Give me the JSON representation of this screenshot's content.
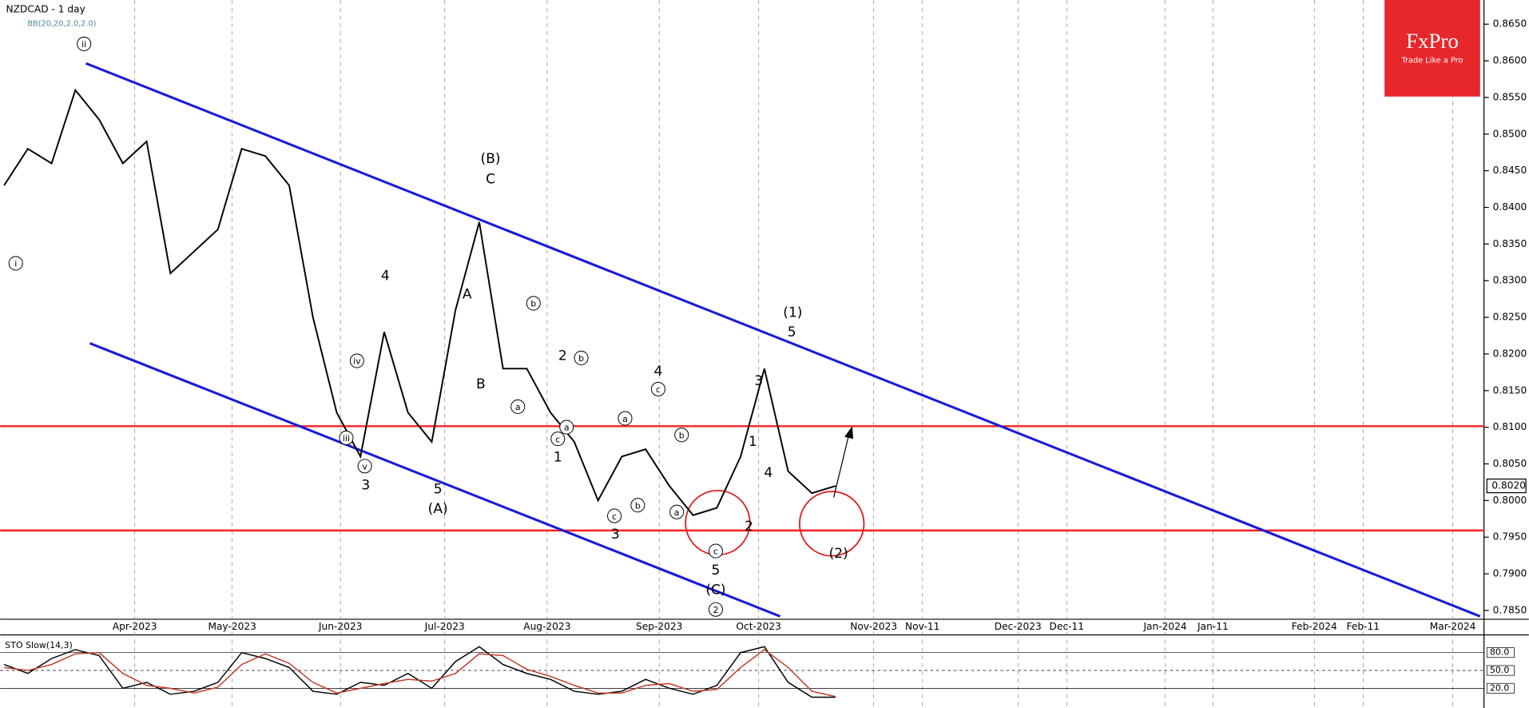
{
  "brand": {
    "name": "FxPro",
    "tagline": "Trade Like a Pro"
  },
  "chart_data": [
    {
      "type": "line",
      "title": "NZDCAD - 1 day",
      "subtitle": "BB(20,20,2.0,2.0)",
      "categories": [
        null,
        null,
        null,
        null,
        null,
        null,
        null,
        null,
        null,
        null,
        null,
        null,
        null,
        null,
        null,
        null,
        null,
        null,
        null,
        null,
        null,
        null,
        null,
        null,
        null,
        null,
        null,
        null,
        null,
        null,
        null,
        null,
        null,
        null,
        null,
        null
      ],
      "values": [
        0.843,
        0.848,
        0.846,
        0.856,
        0.852,
        0.846,
        0.849,
        0.831,
        0.834,
        0.837,
        0.848,
        0.847,
        0.843,
        0.825,
        0.812,
        0.806,
        0.823,
        0.812,
        0.808,
        0.826,
        0.838,
        0.818,
        0.818,
        0.812,
        0.808,
        0.8,
        0.806,
        0.807,
        0.802,
        0.798,
        0.799,
        0.806,
        0.818,
        0.804,
        0.801,
        0.802
      ],
      "color": "#000000",
      "ylim": [
        0.7838,
        0.8683
      ],
      "yticks": [
        {
          "value": 0.865,
          "label": "0.8650"
        },
        {
          "value": 0.86,
          "label": "0.8600"
        },
        {
          "value": 0.855,
          "label": "0.8550"
        },
        {
          "value": 0.85,
          "label": "0.8500"
        },
        {
          "value": 0.845,
          "label": "0.8450"
        },
        {
          "value": 0.84,
          "label": "0.8400"
        },
        {
          "value": 0.835,
          "label": "0.8350"
        },
        {
          "value": 0.83,
          "label": "0.8300"
        },
        {
          "value": 0.825,
          "label": "0.8250"
        },
        {
          "value": 0.82,
          "label": "0.8200"
        },
        {
          "value": 0.815,
          "label": "0.8150"
        },
        {
          "value": 0.81,
          "label": "0.8100"
        },
        {
          "value": 0.805,
          "label": "0.8050"
        },
        {
          "value": 0.8,
          "label": "0.8000"
        },
        {
          "value": 0.795,
          "label": "0.7950"
        },
        {
          "value": 0.79,
          "label": "0.7900"
        },
        {
          "value": 0.785,
          "label": "0.7850"
        }
      ],
      "last_price": {
        "value": 0.802,
        "label": "0.8020"
      },
      "x_labels": [
        "Apr-2023",
        "May-2023",
        "Jun-2023",
        "Jul-2023",
        "Aug-2023",
        "Sep-2023",
        "Oct-2023",
        "Nov-2023",
        "Nov-11",
        "Dec-2023",
        "Dec-11",
        "Jan-2024",
        "Jan-11",
        "Feb-2024",
        "Feb-11",
        "Mar-2024"
      ],
      "annotations": [
        "ii",
        "i",
        "iii",
        "iv",
        "v",
        "3",
        "4",
        "5",
        "(A)",
        "A",
        "B",
        "(B)",
        "C",
        "a",
        "b",
        "2",
        "b",
        "1",
        "c",
        "a",
        "a",
        "c",
        "b",
        "3",
        "4",
        "c",
        "b",
        "a",
        "c",
        "5",
        "(C)",
        "2",
        "1",
        "3",
        "4",
        "2",
        "(1)",
        "5",
        "(2)"
      ]
    },
    {
      "type": "line",
      "title": "STO Slow(14,3)",
      "categories": [
        null,
        null,
        null,
        null,
        null,
        null,
        null,
        null,
        null,
        null,
        null,
        null,
        null,
        null,
        null,
        null,
        null,
        null,
        null,
        null,
        null,
        null,
        null,
        null,
        null,
        null,
        null,
        null,
        null,
        null,
        null,
        null,
        null,
        null,
        null,
        null
      ],
      "series": [
        {
          "color": "#000000",
          "values": [
            60,
            45,
            70,
            85,
            75,
            20,
            30,
            10,
            15,
            30,
            80,
            70,
            55,
            15,
            10,
            30,
            25,
            45,
            20,
            65,
            90,
            60,
            45,
            35,
            15,
            10,
            15,
            35,
            20,
            10,
            25,
            80,
            90,
            30,
            5,
            5
          ]
        },
        {
          "color": "#c0392b",
          "values": [
            55,
            50,
            60,
            78,
            80,
            45,
            25,
            20,
            12,
            22,
            60,
            78,
            62,
            30,
            12,
            20,
            28,
            35,
            32,
            45,
            78,
            75,
            52,
            40,
            25,
            12,
            12,
            25,
            28,
            15,
            18,
            55,
            85,
            55,
            15,
            6
          ]
        }
      ],
      "ylim": [
        0,
        100
      ],
      "yticks": [
        {
          "value": 80,
          "label": "80.0"
        },
        {
          "value": 50,
          "label": "50.0"
        },
        {
          "value": 20,
          "label": "20.0"
        }
      ]
    }
  ]
}
